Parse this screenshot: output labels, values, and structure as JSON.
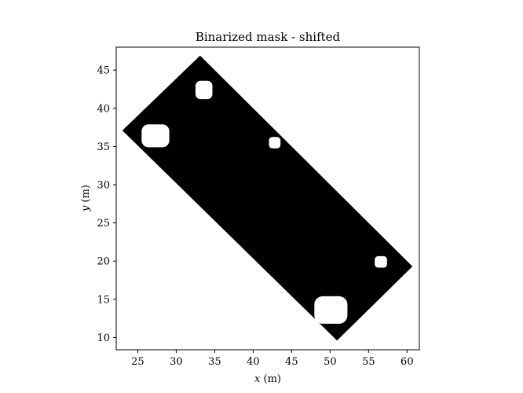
{
  "chart_data": {
    "type": "heatmap",
    "title": "Binarized mask - shifted",
    "xlabel": {
      "var": "x",
      "unit": " (m)"
    },
    "ylabel": {
      "var": "y",
      "unit": " (m)"
    },
    "xlim": [
      22.2,
      61.6
    ],
    "ylim": [
      8.4,
      48.0
    ],
    "xticks": [
      25,
      30,
      35,
      40,
      45,
      50,
      55,
      60
    ],
    "yticks": [
      10,
      15,
      20,
      25,
      30,
      35,
      40,
      45
    ],
    "grid": false,
    "colors": {
      "mask": "#000000",
      "background": "#ffffff",
      "axes": "#000000"
    },
    "mask_region": {
      "vertices": [
        [
          33.1,
          46.9
        ],
        [
          60.7,
          19.3
        ],
        [
          50.9,
          9.6
        ],
        [
          23.0,
          37.1
        ]
      ]
    },
    "holes": [
      {
        "name": "hole-1",
        "center": [
          33.6,
          42.4
        ],
        "size": [
          2.2,
          2.4
        ]
      },
      {
        "name": "hole-2",
        "center": [
          27.3,
          36.4
        ],
        "size": [
          3.6,
          3.0
        ]
      },
      {
        "name": "hole-3",
        "center": [
          42.8,
          35.5
        ],
        "size": [
          1.5,
          1.5
        ]
      },
      {
        "name": "hole-4",
        "center": [
          56.6,
          19.9
        ],
        "size": [
          1.6,
          1.5
        ]
      },
      {
        "name": "hole-5",
        "center": [
          50.1,
          13.6
        ],
        "size": [
          4.3,
          3.6
        ]
      }
    ]
  }
}
